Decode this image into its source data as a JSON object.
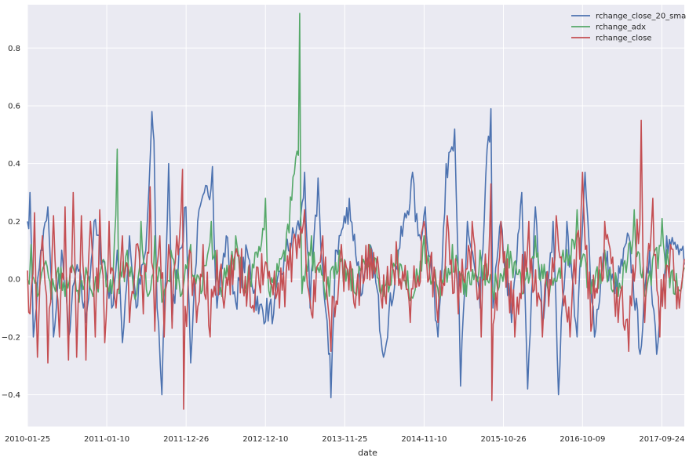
{
  "chart_data": {
    "type": "line",
    "xlabel": "date",
    "ylabel": "",
    "title": "",
    "x_tick_labels": [
      "2010-01-25",
      "2011-01-10",
      "2011-12-26",
      "2012-12-10",
      "2013-11-25",
      "2014-11-10",
      "2015-10-26",
      "2016-10-09",
      "2017-09-24"
    ],
    "x_range": [
      "2010-01-25",
      "2018-01-01"
    ],
    "y_ticks": [
      -0.4,
      -0.2,
      0.0,
      0.2,
      0.4,
      0.6,
      0.8
    ],
    "y_tick_labels": [
      "−0.4",
      "−0.2",
      "0.0",
      "0.2",
      "0.4",
      "0.6",
      "0.8"
    ],
    "ylim": [
      -0.51,
      0.95
    ],
    "grid": true,
    "legend_position": "top-right",
    "series": [
      {
        "name": "rchange_close_20_sma",
        "color": "#4c72b0",
        "points": [
          [
            "2010-01-25",
            0.2
          ],
          [
            "2010-02-05",
            0.3
          ],
          [
            "2010-02-20",
            -0.2
          ],
          [
            "2010-03-25",
            0.1
          ],
          [
            "2010-04-25",
            0.25
          ],
          [
            "2010-05-20",
            -0.2
          ],
          [
            "2010-06-25",
            0.1
          ],
          [
            "2010-07-25",
            -0.2
          ],
          [
            "2010-09-01",
            0.05
          ],
          [
            "2010-10-10",
            -0.15
          ],
          [
            "2010-11-15",
            0.2
          ],
          [
            "2011-01-01",
            0.05
          ],
          [
            "2011-02-01",
            -0.1
          ],
          [
            "2011-02-25",
            0.1
          ],
          [
            "2011-03-20",
            -0.22
          ],
          [
            "2011-04-20",
            0.15
          ],
          [
            "2011-05-20",
            -0.1
          ],
          [
            "2011-07-01",
            0.1
          ],
          [
            "2011-07-28",
            0.58
          ],
          [
            "2011-08-06",
            0.48
          ],
          [
            "2011-08-20",
            -0.1
          ],
          [
            "2011-09-10",
            -0.4
          ],
          [
            "2011-10-10",
            0.4
          ],
          [
            "2011-10-25",
            -0.15
          ],
          [
            "2011-11-25",
            0.1
          ],
          [
            "2011-12-25",
            0.25
          ],
          [
            "2012-01-15",
            -0.29
          ],
          [
            "2012-02-15",
            0.2
          ],
          [
            "2012-03-15",
            0.3
          ],
          [
            "2012-04-20",
            0.39
          ],
          [
            "2012-05-10",
            -0.1
          ],
          [
            "2012-06-20",
            0.15
          ],
          [
            "2012-08-01",
            -0.08
          ],
          [
            "2012-09-20",
            0.1
          ],
          [
            "2012-11-10",
            -0.12
          ],
          [
            "2013-01-15",
            -0.12
          ],
          [
            "2013-03-10",
            0.1
          ],
          [
            "2013-05-15",
            0.22
          ],
          [
            "2013-06-01",
            0.37
          ],
          [
            "2013-06-25",
            -0.1
          ],
          [
            "2013-07-30",
            0.35
          ],
          [
            "2013-08-25",
            -0.05
          ],
          [
            "2013-09-15",
            -0.26
          ],
          [
            "2013-09-25",
            -0.41
          ],
          [
            "2013-10-15",
            0.1
          ],
          [
            "2013-12-15",
            0.28
          ],
          [
            "2014-02-10",
            -0.05
          ],
          [
            "2014-03-25",
            0.1
          ],
          [
            "2014-05-15",
            -0.27
          ],
          [
            "2014-07-20",
            0.1
          ],
          [
            "2014-09-20",
            0.37
          ],
          [
            "2014-10-15",
            0.15
          ],
          [
            "2014-11-15",
            0.25
          ],
          [
            "2015-01-10",
            -0.2
          ],
          [
            "2015-02-15",
            0.4
          ],
          [
            "2015-03-25",
            0.52
          ],
          [
            "2015-04-20",
            -0.37
          ],
          [
            "2015-05-20",
            0.2
          ],
          [
            "2015-07-15",
            -0.1
          ],
          [
            "2015-08-15",
            0.45
          ],
          [
            "2015-09-01",
            0.59
          ],
          [
            "2015-09-10",
            -0.1
          ],
          [
            "2015-10-15",
            0.2
          ],
          [
            "2015-12-01",
            -0.15
          ],
          [
            "2016-01-15",
            0.3
          ],
          [
            "2016-02-10",
            -0.38
          ],
          [
            "2016-03-15",
            0.25
          ],
          [
            "2016-04-15",
            -0.15
          ],
          [
            "2016-06-01",
            0.2
          ],
          [
            "2016-06-25",
            -0.4
          ],
          [
            "2016-08-01",
            0.2
          ],
          [
            "2016-09-15",
            -0.2
          ],
          [
            "2016-10-20",
            0.37
          ],
          [
            "2016-12-01",
            -0.2
          ],
          [
            "2017-01-15",
            0.1
          ],
          [
            "2017-03-01",
            -0.05
          ],
          [
            "2017-05-01",
            0.15
          ],
          [
            "2017-06-20",
            -0.26
          ],
          [
            "2017-08-01",
            0.1
          ],
          [
            "2017-09-01",
            -0.26
          ],
          [
            "2017-10-15",
            0.15
          ],
          [
            "2017-11-15",
            0.12
          ],
          [
            "2017-12-20",
            0.1
          ],
          [
            "2018-01-01",
            0.05
          ]
        ]
      },
      {
        "name": "rchange_adx",
        "color": "#55a868",
        "points": [
          [
            "2010-01-25",
            0.0
          ],
          [
            "2010-02-10",
            0.12
          ],
          [
            "2010-03-10",
            -0.06
          ],
          [
            "2010-04-10",
            0.05
          ],
          [
            "2010-05-10",
            -0.07
          ],
          [
            "2010-06-10",
            0.04
          ],
          [
            "2010-07-10",
            -0.06
          ],
          [
            "2010-08-10",
            0.05
          ],
          [
            "2010-09-10",
            -0.08
          ],
          [
            "2010-10-10",
            0.04
          ],
          [
            "2010-11-10",
            -0.06
          ],
          [
            "2011-01-01",
            0.06
          ],
          [
            "2011-02-01",
            -0.05
          ],
          [
            "2011-02-25",
            0.45
          ],
          [
            "2011-03-05",
            -0.05
          ],
          [
            "2011-04-10",
            0.1
          ],
          [
            "2011-05-15",
            -0.07
          ],
          [
            "2011-06-10",
            0.2
          ],
          [
            "2011-07-10",
            -0.06
          ],
          [
            "2011-08-10",
            0.15
          ],
          [
            "2011-09-10",
            -0.08
          ],
          [
            "2011-10-20",
            0.1
          ],
          [
            "2011-12-01",
            -0.06
          ],
          [
            "2012-01-15",
            0.12
          ],
          [
            "2012-03-01",
            -0.05
          ],
          [
            "2012-04-15",
            0.2
          ],
          [
            "2012-06-01",
            -0.06
          ],
          [
            "2012-08-01",
            0.15
          ],
          [
            "2012-09-15",
            -0.05
          ],
          [
            "2012-12-10",
            0.28
          ],
          [
            "2012-12-25",
            -0.04
          ],
          [
            "2013-03-01",
            0.1
          ],
          [
            "2013-05-10",
            0.92
          ],
          [
            "2013-05-20",
            -0.05
          ],
          [
            "2013-07-01",
            0.15
          ],
          [
            "2013-09-01",
            -0.07
          ],
          [
            "2013-11-01",
            0.1
          ],
          [
            "2014-01-10",
            -0.05
          ],
          [
            "2014-03-15",
            0.12
          ],
          [
            "2014-05-15",
            -0.06
          ],
          [
            "2014-07-15",
            0.1
          ],
          [
            "2014-09-15",
            -0.06
          ],
          [
            "2014-11-10",
            0.15
          ],
          [
            "2015-01-15",
            -0.07
          ],
          [
            "2015-03-15",
            0.12
          ],
          [
            "2015-05-15",
            -0.06
          ],
          [
            "2015-07-15",
            0.1
          ],
          [
            "2015-09-15",
            -0.07
          ],
          [
            "2015-11-15",
            0.12
          ],
          [
            "2016-01-15",
            -0.05
          ],
          [
            "2016-03-15",
            0.15
          ],
          [
            "2016-05-15",
            -0.06
          ],
          [
            "2016-07-15",
            0.1
          ],
          [
            "2016-09-15",
            0.24
          ],
          [
            "2016-11-15",
            -0.05
          ],
          [
            "2017-01-15",
            0.1
          ],
          [
            "2017-03-15",
            -0.06
          ],
          [
            "2017-05-25",
            0.24
          ],
          [
            "2017-07-15",
            -0.06
          ],
          [
            "2017-09-25",
            0.21
          ],
          [
            "2017-11-15",
            -0.05
          ],
          [
            "2018-01-01",
            0.04
          ]
        ]
      },
      {
        "name": "rchange_close",
        "color": "#c44e52",
        "points": [
          [
            "2010-01-25",
            0.03
          ],
          [
            "2010-02-05",
            -0.12
          ],
          [
            "2010-02-25",
            0.23
          ],
          [
            "2010-03-10",
            -0.27
          ],
          [
            "2010-04-01",
            0.15
          ],
          [
            "2010-04-25",
            -0.29
          ],
          [
            "2010-05-20",
            0.22
          ],
          [
            "2010-06-15",
            -0.2
          ],
          [
            "2010-07-10",
            0.25
          ],
          [
            "2010-07-25",
            -0.28
          ],
          [
            "2010-08-15",
            0.3
          ],
          [
            "2010-08-30",
            -0.27
          ],
          [
            "2010-09-20",
            0.22
          ],
          [
            "2010-10-10",
            -0.28
          ],
          [
            "2010-10-30",
            0.2
          ],
          [
            "2010-11-20",
            -0.2
          ],
          [
            "2010-12-10",
            0.24
          ],
          [
            "2011-01-01",
            -0.22
          ],
          [
            "2011-01-20",
            0.2
          ],
          [
            "2011-02-20",
            -0.1
          ],
          [
            "2011-03-20",
            0.15
          ],
          [
            "2011-04-20",
            -0.15
          ],
          [
            "2011-05-20",
            0.12
          ],
          [
            "2011-06-20",
            -0.12
          ],
          [
            "2011-07-20",
            0.32
          ],
          [
            "2011-08-10",
            -0.18
          ],
          [
            "2011-09-01",
            0.15
          ],
          [
            "2011-09-20",
            -0.2
          ],
          [
            "2011-10-10",
            0.12
          ],
          [
            "2011-10-25",
            -0.17
          ],
          [
            "2011-11-15",
            0.15
          ],
          [
            "2011-12-10",
            0.38
          ],
          [
            "2011-12-15",
            -0.45
          ],
          [
            "2012-01-10",
            0.1
          ],
          [
            "2012-02-10",
            -0.15
          ],
          [
            "2012-03-10",
            0.12
          ],
          [
            "2012-04-10",
            -0.2
          ],
          [
            "2012-05-10",
            0.1
          ],
          [
            "2012-06-10",
            -0.1
          ],
          [
            "2012-08-10",
            0.08
          ],
          [
            "2012-10-10",
            -0.1
          ],
          [
            "2012-12-10",
            0.06
          ],
          [
            "2013-02-10",
            -0.1
          ],
          [
            "2013-04-10",
            0.12
          ],
          [
            "2013-06-01",
            0.24
          ],
          [
            "2013-07-01",
            -0.12
          ],
          [
            "2013-08-20",
            0.15
          ],
          [
            "2013-09-25",
            -0.25
          ],
          [
            "2013-11-10",
            0.12
          ],
          [
            "2014-01-10",
            -0.1
          ],
          [
            "2014-03-10",
            0.12
          ],
          [
            "2014-05-10",
            -0.1
          ],
          [
            "2014-07-10",
            0.13
          ],
          [
            "2014-09-10",
            -0.15
          ],
          [
            "2014-11-10",
            0.2
          ],
          [
            "2015-01-10",
            -0.15
          ],
          [
            "2015-02-20",
            0.22
          ],
          [
            "2015-04-10",
            -0.12
          ],
          [
            "2015-06-10",
            0.2
          ],
          [
            "2015-07-20",
            -0.2
          ],
          [
            "2015-09-01",
            0.33
          ],
          [
            "2015-09-05",
            -0.42
          ],
          [
            "2015-10-15",
            0.2
          ],
          [
            "2015-12-15",
            -0.2
          ],
          [
            "2016-02-15",
            0.2
          ],
          [
            "2016-04-15",
            -0.2
          ],
          [
            "2016-06-15",
            0.22
          ],
          [
            "2016-08-15",
            -0.2
          ],
          [
            "2016-10-09",
            0.37
          ],
          [
            "2016-11-15",
            -0.18
          ],
          [
            "2017-01-15",
            0.2
          ],
          [
            "2017-03-15",
            -0.15
          ],
          [
            "2017-05-01",
            -0.25
          ],
          [
            "2017-06-25",
            0.55
          ],
          [
            "2017-07-10",
            -0.15
          ],
          [
            "2017-08-15",
            0.28
          ],
          [
            "2017-09-15",
            -0.2
          ],
          [
            "2017-11-01",
            0.12
          ],
          [
            "2017-12-10",
            -0.1
          ],
          [
            "2018-01-01",
            0.07
          ]
        ]
      }
    ]
  }
}
